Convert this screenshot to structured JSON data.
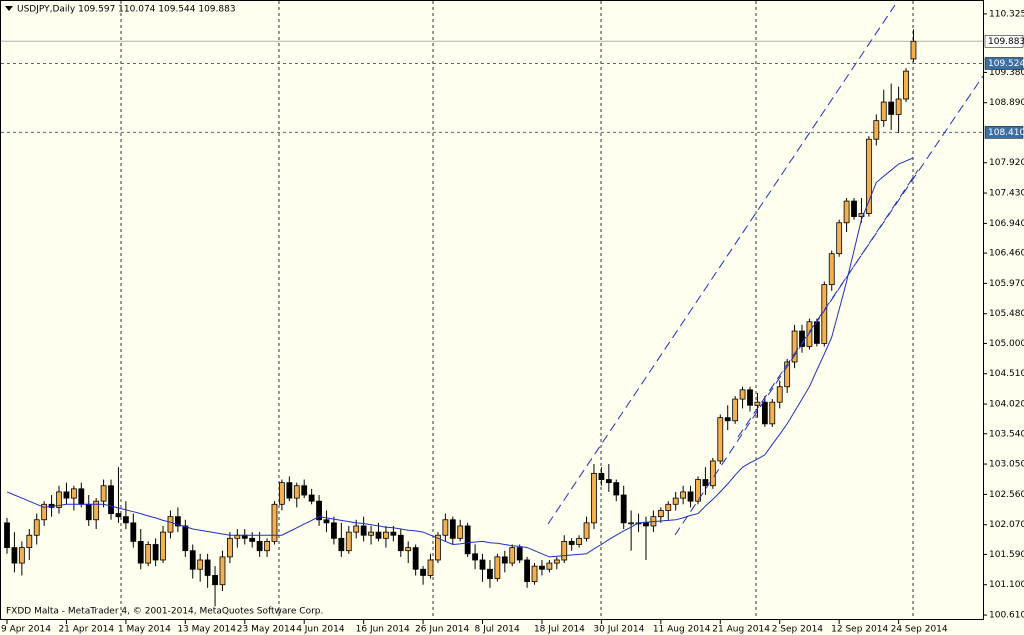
{
  "chart_data": {
    "type": "candlestick",
    "title": "USDJPY,Daily  109.597 110.074 109.544 109.883",
    "footer": "FXDD Malta - MetaTrader 4, © 2001-2014, MetaQuotes Software Corp.",
    "bull_color": "#f2b050",
    "bear_color": "#000000",
    "ma_color": "#2030c0",
    "ylim": [
      100.53,
      110.55
    ],
    "yticks": [
      110.325,
      {
        "value": 109.38,
        "label": "109.380"
      },
      {
        "value": 108.89,
        "label": "108.890"
      },
      {
        "value": 107.92,
        "label": "107.920"
      },
      {
        "value": 107.43,
        "label": "107.430"
      },
      {
        "value": 106.94,
        "label": "106.940"
      },
      {
        "value": 106.46,
        "label": "106.460"
      },
      {
        "value": 105.97,
        "label": "105.970"
      },
      {
        "value": 105.48,
        "label": "105.480"
      },
      {
        "value": 105,
        "label": "105.000"
      },
      {
        "value": 104.51,
        "label": "104.510"
      },
      {
        "value": 104.02,
        "label": "104.020"
      },
      {
        "value": 103.54,
        "label": "103.540"
      },
      {
        "value": 103.05,
        "label": "103.050"
      },
      {
        "value": 102.56,
        "label": "102.560"
      },
      {
        "value": 102.07,
        "label": "102.070"
      },
      {
        "value": 101.59,
        "label": "101.590"
      },
      {
        "value": 101.1,
        "label": "101.100"
      },
      {
        "value": 100.61,
        "label": "100.610"
      }
    ],
    "price_line": 109.883,
    "levels": [
      109.524,
      {
        "value": 108.41,
        "label": "108.410"
      }
    ],
    "categories": [
      "9 Apr 2014",
      null,
      null,
      null,
      null,
      null,
      null,
      null,
      "21 Apr 2014",
      null,
      null,
      null,
      null,
      null,
      null,
      null,
      "1 May 2014",
      null,
      null,
      null,
      null,
      null,
      null,
      null,
      "13 May 2014",
      null,
      null,
      null,
      null,
      null,
      null,
      null,
      "23 May 2014",
      null,
      null,
      null,
      null,
      null,
      null,
      null,
      "4 Jun 2014",
      null,
      null,
      null,
      null,
      null,
      null,
      null,
      "16 Jun 2014",
      null,
      null,
      null,
      null,
      null,
      null,
      null,
      "26 Jun 2014",
      null,
      null,
      null,
      null,
      null,
      null,
      null,
      "8 Jul 2014",
      null,
      null,
      null,
      null,
      null,
      null,
      null,
      "18 Jul 2014",
      null,
      null,
      null,
      null,
      null,
      null,
      null,
      "30 Jul 2014",
      null,
      null,
      null,
      null,
      null,
      null,
      null,
      "11 Aug 2014",
      null,
      null,
      null,
      null,
      null,
      null,
      null,
      "21 Aug 2014",
      null,
      null,
      null,
      null,
      null,
      null,
      null,
      "2 Sep 2014",
      null,
      null,
      null,
      null,
      null,
      null,
      null,
      "12 Sep 2014",
      null,
      null,
      null,
      null,
      null,
      null,
      null,
      "24 Sep 2014",
      null,
      null
    ],
    "ohlc": [
      [
        102.1,
        102.18,
        101.6,
        101.7
      ],
      [
        101.7,
        101.95,
        101.3,
        101.45
      ],
      [
        101.45,
        101.8,
        101.25,
        101.7
      ],
      [
        101.7,
        102.0,
        101.5,
        101.9
      ],
      [
        101.9,
        102.25,
        101.75,
        102.15
      ],
      [
        102.15,
        102.45,
        102.05,
        102.4
      ],
      [
        102.4,
        102.55,
        102.2,
        102.35
      ],
      [
        102.35,
        102.7,
        102.25,
        102.6
      ],
      [
        102.6,
        102.75,
        102.4,
        102.5
      ],
      [
        102.5,
        102.7,
        102.3,
        102.65
      ],
      [
        102.65,
        102.75,
        102.35,
        102.4
      ],
      [
        102.4,
        102.55,
        102.05,
        102.15
      ],
      [
        102.15,
        102.5,
        102.0,
        102.45
      ],
      [
        102.45,
        102.8,
        102.35,
        102.7
      ],
      [
        102.7,
        102.8,
        102.15,
        102.25
      ],
      [
        102.25,
        103.0,
        102.1,
        102.2
      ],
      [
        102.2,
        102.45,
        102.0,
        102.1
      ],
      [
        102.1,
        102.25,
        101.7,
        101.8
      ],
      [
        101.8,
        102.0,
        101.35,
        101.45
      ],
      [
        101.45,
        101.8,
        101.4,
        101.75
      ],
      [
        101.75,
        101.85,
        101.4,
        101.5
      ],
      [
        101.5,
        102.05,
        101.45,
        101.95
      ],
      [
        101.95,
        102.3,
        101.85,
        102.2
      ],
      [
        102.2,
        102.35,
        101.95,
        102.05
      ],
      [
        102.05,
        102.15,
        101.55,
        101.65
      ],
      [
        101.65,
        101.75,
        101.2,
        101.35
      ],
      [
        101.35,
        101.6,
        101.15,
        101.5
      ],
      [
        101.5,
        101.6,
        101.05,
        101.25
      ],
      [
        101.25,
        101.4,
        100.75,
        101.1
      ],
      [
        101.1,
        101.65,
        101.0,
        101.55
      ],
      [
        101.55,
        101.95,
        101.45,
        101.85
      ],
      [
        101.85,
        102.0,
        101.7,
        101.9
      ],
      [
        101.9,
        102.0,
        101.75,
        101.85
      ],
      [
        101.85,
        101.95,
        101.7,
        101.8
      ],
      [
        101.8,
        101.95,
        101.55,
        101.65
      ],
      [
        101.65,
        101.85,
        101.55,
        101.8
      ],
      [
        101.8,
        102.45,
        101.75,
        102.4
      ],
      [
        102.4,
        102.8,
        102.3,
        102.75
      ],
      [
        102.75,
        102.85,
        102.45,
        102.5
      ],
      [
        102.5,
        102.75,
        102.35,
        102.7
      ],
      [
        102.7,
        102.8,
        102.5,
        102.55
      ],
      [
        102.55,
        102.65,
        102.4,
        102.45
      ],
      [
        102.45,
        102.55,
        102.05,
        102.15
      ],
      [
        102.15,
        102.3,
        101.95,
        102.1
      ],
      [
        102.1,
        102.2,
        101.75,
        101.85
      ],
      [
        101.85,
        102.1,
        101.55,
        101.65
      ],
      [
        101.65,
        102.05,
        101.6,
        101.95
      ],
      [
        101.95,
        102.15,
        101.85,
        102.05
      ],
      [
        102.05,
        102.2,
        101.8,
        101.9
      ],
      [
        101.9,
        102.05,
        101.75,
        101.95
      ],
      [
        101.95,
        102.1,
        101.8,
        101.85
      ],
      [
        101.85,
        102.05,
        101.7,
        101.95
      ],
      [
        101.95,
        102.05,
        101.8,
        101.9
      ],
      [
        101.9,
        102.0,
        101.55,
        101.65
      ],
      [
        101.65,
        101.8,
        101.45,
        101.7
      ],
      [
        101.7,
        101.75,
        101.25,
        101.35
      ],
      [
        101.35,
        101.4,
        101.1,
        101.25
      ],
      [
        101.25,
        101.6,
        101.2,
        101.5
      ],
      [
        101.5,
        101.95,
        101.45,
        101.9
      ],
      [
        101.9,
        102.25,
        101.8,
        102.15
      ],
      [
        102.15,
        102.2,
        101.75,
        101.85
      ],
      [
        101.85,
        102.15,
        101.8,
        102.05
      ],
      [
        102.05,
        102.1,
        101.55,
        101.6
      ],
      [
        101.6,
        101.75,
        101.35,
        101.5
      ],
      [
        101.5,
        101.6,
        101.15,
        101.35
      ],
      [
        101.35,
        101.5,
        101.05,
        101.2
      ],
      [
        101.2,
        101.6,
        101.15,
        101.55
      ],
      [
        101.55,
        101.65,
        101.3,
        101.45
      ],
      [
        101.45,
        101.75,
        101.4,
        101.7
      ],
      [
        101.7,
        101.75,
        101.45,
        101.5
      ],
      [
        101.5,
        101.55,
        101.05,
        101.15
      ],
      [
        101.15,
        101.45,
        101.1,
        101.4
      ],
      [
        101.4,
        101.5,
        101.25,
        101.35
      ],
      [
        101.35,
        101.5,
        101.3,
        101.45
      ],
      [
        101.45,
        101.55,
        101.35,
        101.5
      ],
      [
        101.5,
        101.9,
        101.45,
        101.8
      ],
      [
        101.8,
        101.85,
        101.65,
        101.75
      ],
      [
        101.75,
        101.9,
        101.7,
        101.85
      ],
      [
        101.85,
        102.2,
        101.8,
        102.1
      ],
      [
        102.1,
        103.05,
        102.0,
        102.9
      ],
      [
        102.9,
        103.0,
        102.7,
        102.8
      ],
      [
        102.8,
        103.05,
        102.6,
        102.75
      ],
      [
        102.75,
        102.8,
        102.45,
        102.55
      ],
      [
        102.55,
        102.7,
        102.0,
        102.1
      ],
      [
        102.1,
        102.3,
        101.65,
        102.1
      ],
      [
        102.1,
        102.25,
        101.95,
        102.1
      ],
      [
        102.1,
        102.2,
        101.5,
        102.05
      ],
      [
        102.05,
        102.3,
        101.95,
        102.2
      ],
      [
        102.2,
        102.35,
        102.1,
        102.3
      ],
      [
        102.3,
        102.45,
        102.15,
        102.4
      ],
      [
        102.4,
        102.6,
        102.3,
        102.5
      ],
      [
        102.5,
        102.7,
        102.4,
        102.6
      ],
      [
        102.6,
        102.7,
        102.35,
        102.45
      ],
      [
        102.45,
        102.85,
        102.4,
        102.8
      ],
      [
        102.8,
        103.0,
        102.55,
        102.7
      ],
      [
        102.7,
        103.15,
        102.65,
        103.1
      ],
      [
        103.1,
        103.85,
        103.05,
        103.8
      ],
      [
        103.8,
        104.0,
        103.6,
        103.75
      ],
      [
        103.75,
        104.15,
        103.7,
        104.1
      ],
      [
        104.1,
        104.3,
        103.95,
        104.25
      ],
      [
        104.25,
        104.3,
        103.9,
        104.0
      ],
      [
        104.0,
        104.2,
        103.8,
        104.05
      ],
      [
        104.05,
        104.15,
        103.65,
        103.7
      ],
      [
        103.7,
        104.1,
        103.65,
        104.05
      ],
      [
        104.05,
        104.4,
        103.95,
        104.3
      ],
      [
        104.3,
        104.75,
        104.2,
        104.7
      ],
      [
        104.7,
        105.3,
        104.6,
        105.2
      ],
      [
        105.2,
        105.3,
        104.85,
        104.95
      ],
      [
        104.95,
        105.4,
        104.9,
        105.35
      ],
      [
        105.35,
        105.4,
        104.95,
        105.0
      ],
      [
        105.0,
        106.0,
        104.95,
        105.95
      ],
      [
        105.95,
        106.5,
        105.85,
        106.45
      ],
      [
        106.45,
        107.0,
        106.4,
        106.95
      ],
      [
        106.95,
        107.35,
        106.8,
        107.3
      ],
      [
        107.3,
        107.35,
        107.0,
        107.05
      ],
      [
        107.05,
        107.35,
        106.95,
        107.1
      ],
      [
        107.1,
        108.35,
        107.05,
        108.3
      ],
      [
        108.3,
        108.7,
        108.2,
        108.6
      ],
      [
        108.6,
        109.1,
        108.5,
        108.9
      ],
      [
        108.9,
        109.2,
        108.45,
        108.7
      ],
      [
        108.7,
        109.15,
        108.4,
        108.95
      ],
      [
        108.95,
        109.45,
        108.9,
        109.4
      ],
      [
        109.597,
        110.074,
        109.544,
        109.883
      ]
    ],
    "ma": [
      102.6,
      102.55,
      102.5,
      102.45,
      102.4,
      102.35,
      102.37,
      102.38,
      102.4,
      102.4,
      102.4,
      102.4,
      102.4,
      102.4,
      102.37,
      102.34,
      102.31,
      102.28,
      102.25,
      102.21,
      102.18,
      102.14,
      102.11,
      102.07,
      102.04,
      102.0,
      101.98,
      101.96,
      101.94,
      101.92,
      101.9,
      101.9,
      101.9,
      101.9,
      101.9,
      101.9,
      101.9,
      101.9,
      101.96,
      102.02,
      102.08,
      102.14,
      102.2,
      102.18,
      102.16,
      102.14,
      102.12,
      102.1,
      102.09,
      102.07,
      102.05,
      102.03,
      102.02,
      102.0,
      101.98,
      101.97,
      101.95,
      101.9,
      101.85,
      101.8,
      101.75,
      101.76,
      101.78,
      101.79,
      101.8,
      101.78,
      101.77,
      101.75,
      101.73,
      101.72,
      101.7,
      101.65,
      101.6,
      101.55,
      101.56,
      101.57,
      101.58,
      101.59,
      101.6,
      101.68,
      101.75,
      101.83,
      101.9,
      101.97,
      102.03,
      102.1,
      102.11,
      102.12,
      102.13,
      102.14,
      102.15,
      102.18,
      102.22,
      102.25,
      102.37,
      102.48,
      102.6,
      102.73,
      102.87,
      103.0,
      103.07,
      103.13,
      103.2,
      103.37,
      103.53,
      103.7,
      103.9,
      104.1,
      104.3,
      104.57,
      104.83,
      105.1,
      105.55,
      106.0,
      106.5,
      107.0,
      107.3,
      107.6,
      107.7,
      107.8,
      107.9,
      107.95,
      108.0
    ]
  }
}
